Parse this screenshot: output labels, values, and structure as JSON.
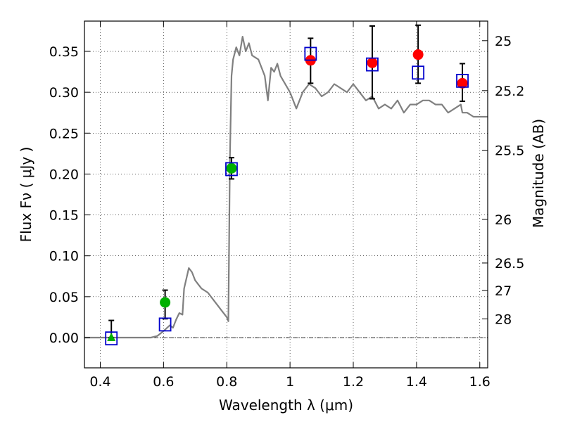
{
  "chart_data": {
    "type": "scatter",
    "xlabel": "Wavelength  λ (μm)",
    "ylabel": "Flux  Fν  ( μJy )",
    "ylabel_right": "Magnitude (AB)",
    "xlim": [
      0.35,
      1.625
    ],
    "ylim": [
      -0.037,
      0.387
    ],
    "x_ticks": [
      {
        "value": 0.4,
        "label": "0.4"
      },
      {
        "value": 0.6,
        "label": "0.6"
      },
      {
        "value": 0.8,
        "label": "0.8"
      },
      {
        "value": 1.0,
        "label": "1"
      },
      {
        "value": 1.2,
        "label": "1.2"
      },
      {
        "value": 1.4,
        "label": "1.4"
      },
      {
        "value": 1.6,
        "label": "1.6"
      }
    ],
    "y_ticks": [
      {
        "value": 0.0,
        "label": "0.00"
      },
      {
        "value": 0.05,
        "label": "0.05"
      },
      {
        "value": 0.1,
        "label": "0.10"
      },
      {
        "value": 0.15,
        "label": "0.15"
      },
      {
        "value": 0.2,
        "label": "0.20"
      },
      {
        "value": 0.25,
        "label": "0.25"
      },
      {
        "value": 0.3,
        "label": "0.30"
      },
      {
        "value": 0.35,
        "label": "0.35"
      }
    ],
    "mag_ticks": [
      {
        "mag": 25,
        "label": "25"
      },
      {
        "mag": 25.2,
        "label": "25.2"
      },
      {
        "mag": 25.5,
        "label": "25.5"
      },
      {
        "mag": 26,
        "label": "26"
      },
      {
        "mag": 26.5,
        "label": "26.5"
      },
      {
        "mag": 27,
        "label": "27"
      },
      {
        "mag": 28,
        "label": "28"
      }
    ],
    "grid": true,
    "colors": {
      "model": "#808080",
      "model_points": "#0000cc",
      "observed": "#ff0000",
      "optical": "#00b000",
      "errorbar": "#000000",
      "zero_line": "#000000"
    },
    "series": [
      {
        "name": "model_spectrum",
        "style": "line",
        "x": [
          0.35,
          0.56,
          0.58,
          0.6,
          0.62,
          0.63,
          0.64,
          0.65,
          0.66,
          0.665,
          0.68,
          0.69,
          0.7,
          0.71,
          0.72,
          0.74,
          0.76,
          0.78,
          0.8,
          0.805,
          0.81,
          0.815,
          0.82,
          0.83,
          0.84,
          0.85,
          0.86,
          0.87,
          0.88,
          0.9,
          0.92,
          0.93,
          0.94,
          0.95,
          0.96,
          0.97,
          1.0,
          1.02,
          1.04,
          1.06,
          1.08,
          1.1,
          1.12,
          1.14,
          1.16,
          1.18,
          1.2,
          1.22,
          1.24,
          1.26,
          1.28,
          1.3,
          1.32,
          1.34,
          1.36,
          1.38,
          1.4,
          1.42,
          1.44,
          1.46,
          1.48,
          1.5,
          1.52,
          1.54,
          1.545,
          1.56,
          1.58,
          1.6,
          1.625
        ],
        "y": [
          0.0,
          0.0,
          0.002,
          0.008,
          0.015,
          0.012,
          0.022,
          0.03,
          0.028,
          0.06,
          0.085,
          0.08,
          0.07,
          0.065,
          0.06,
          0.055,
          0.045,
          0.035,
          0.025,
          0.02,
          0.22,
          0.32,
          0.34,
          0.355,
          0.345,
          0.368,
          0.35,
          0.36,
          0.345,
          0.34,
          0.32,
          0.29,
          0.33,
          0.325,
          0.335,
          0.32,
          0.3,
          0.28,
          0.3,
          0.31,
          0.305,
          0.295,
          0.3,
          0.31,
          0.305,
          0.3,
          0.31,
          0.3,
          0.29,
          0.295,
          0.28,
          0.285,
          0.28,
          0.29,
          0.275,
          0.285,
          0.285,
          0.29,
          0.29,
          0.285,
          0.285,
          0.275,
          0.28,
          0.285,
          0.275,
          0.275,
          0.27,
          0.27,
          0.27
        ]
      },
      {
        "name": "observed_photometry",
        "style": "circle",
        "points": [
          {
            "x": 1.065,
            "y": 0.339,
            "err_low": 0.028,
            "err_high": 0.027
          },
          {
            "x": 1.26,
            "y": 0.336,
            "err_low": 0.044,
            "err_high": 0.045
          },
          {
            "x": 1.405,
            "y": 0.346,
            "err_low": 0.035,
            "err_high": 0.036
          },
          {
            "x": 1.545,
            "y": 0.311,
            "err_low": 0.022,
            "err_high": 0.024
          }
        ]
      },
      {
        "name": "optical_photometry",
        "style": "circle",
        "points": [
          {
            "x": 0.605,
            "y": 0.043,
            "err_low": 0.02,
            "err_high": 0.015
          },
          {
            "x": 0.815,
            "y": 0.207,
            "err_low": 0.013,
            "err_high": 0.013
          }
        ]
      },
      {
        "name": "optical_upper_limit",
        "style": "triangle",
        "points": [
          {
            "x": 0.435,
            "y": 0.0,
            "err_low": 0.0,
            "err_high": 0.021
          }
        ]
      },
      {
        "name": "model_bandpass",
        "style": "open-square",
        "points": [
          {
            "x": 0.435,
            "y": -0.001
          },
          {
            "x": 0.605,
            "y": 0.016
          },
          {
            "x": 0.815,
            "y": 0.206
          },
          {
            "x": 1.065,
            "y": 0.347
          },
          {
            "x": 1.26,
            "y": 0.334
          },
          {
            "x": 1.405,
            "y": 0.324
          },
          {
            "x": 1.545,
            "y": 0.314
          }
        ]
      }
    ]
  }
}
